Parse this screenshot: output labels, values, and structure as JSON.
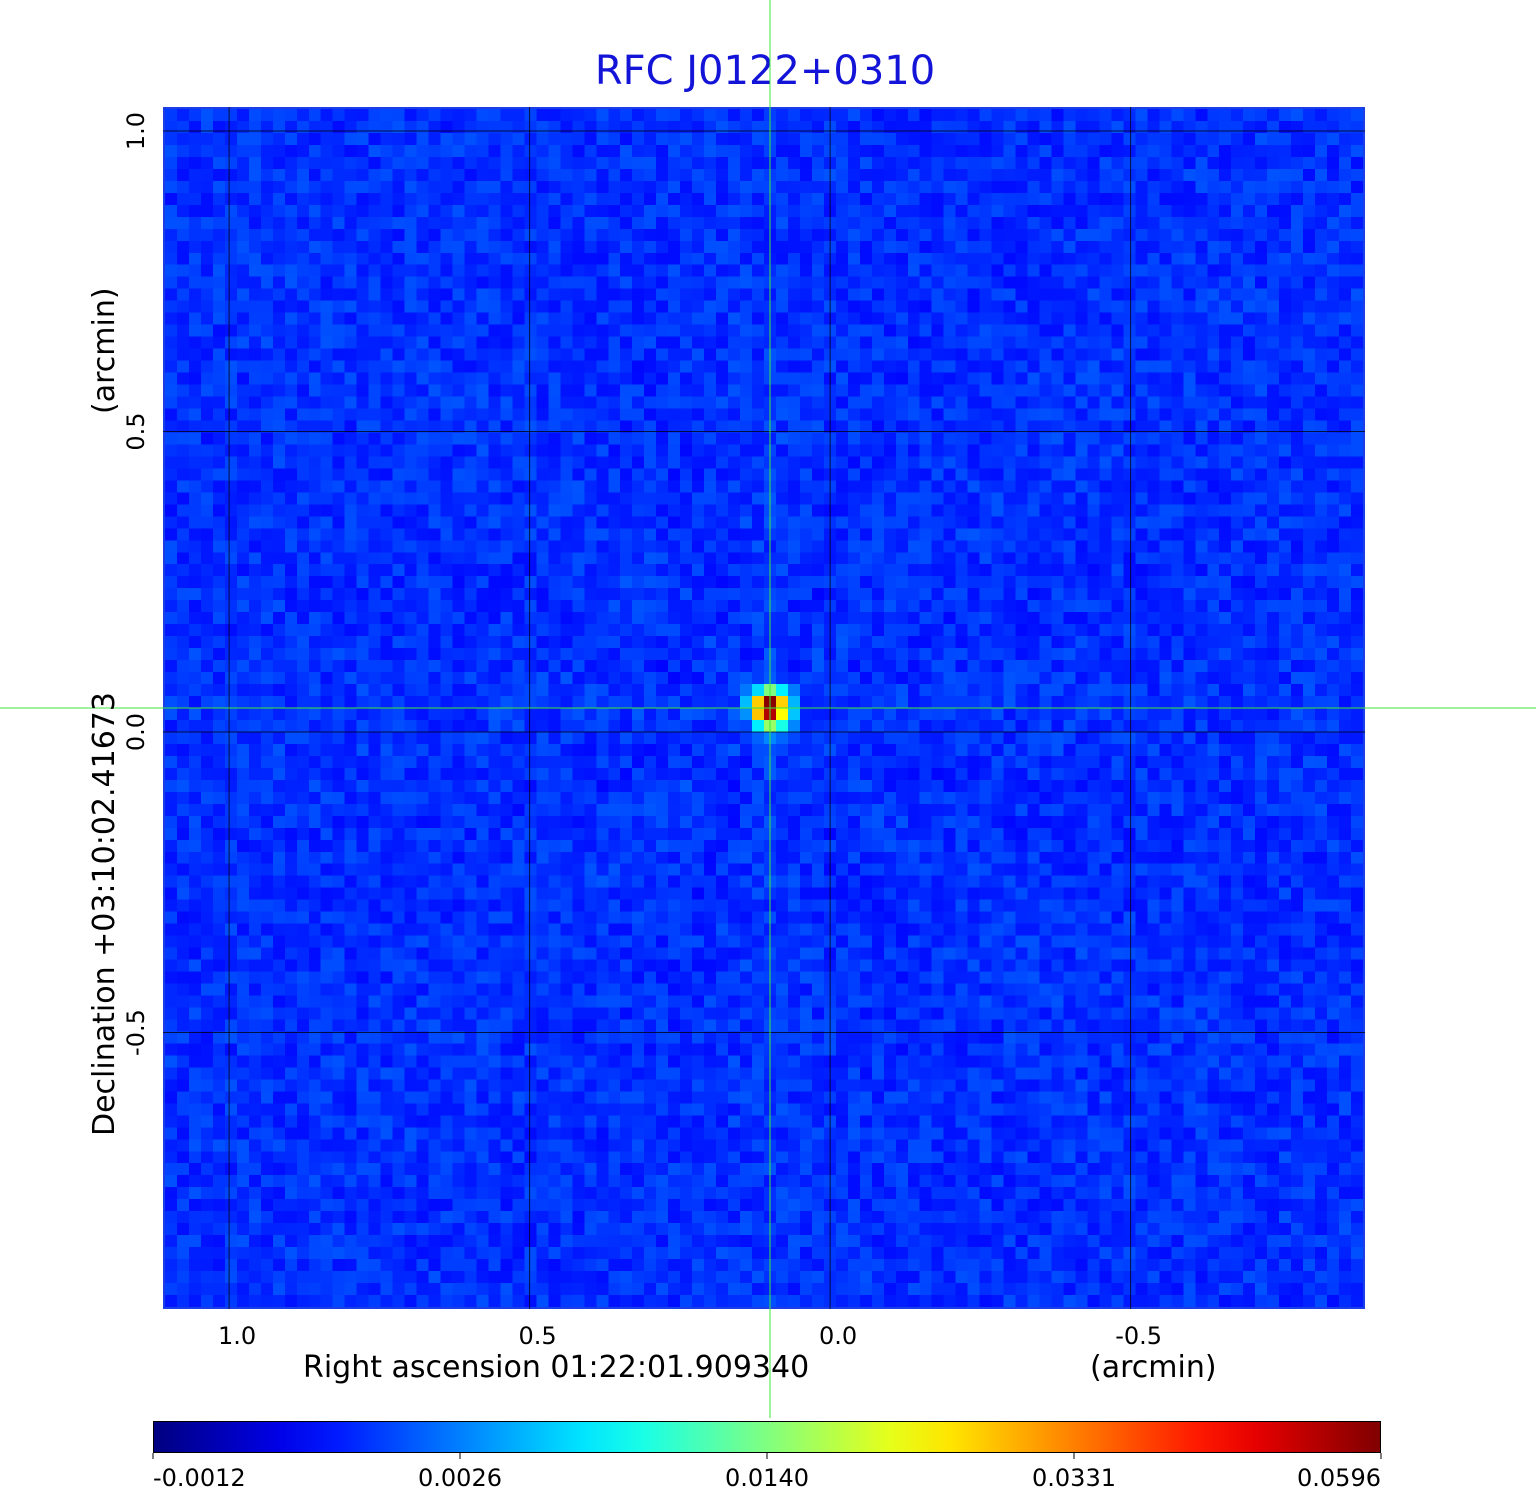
{
  "chart_data": {
    "type": "heatmap",
    "title": "RFC J0122+0310",
    "xlabel": "Right ascension  01:22:01.909340",
    "xlabel_unit": "(arcmin)",
    "ylabel": "Declination  +03:10:02.41673",
    "ylabel_unit": "(arcmin)",
    "xlim": [
      1.11,
      -0.89
    ],
    "ylim": [
      -0.96,
      1.04
    ],
    "x_ticks": [
      1.0,
      0.5,
      0.0,
      -0.5
    ],
    "x_tick_labels": [
      "1.0",
      "0.5",
      "0.0",
      "-0.5"
    ],
    "y_ticks": [
      1.0,
      0.5,
      0.0,
      -0.5
    ],
    "y_tick_labels": [
      "1.0",
      "0.5",
      "0.0",
      "-0.5"
    ],
    "grid": true,
    "crosshair": {
      "x": 0.1,
      "y": 0.04,
      "color": "#3ee83e"
    },
    "source_peak": {
      "x": 0.1,
      "y": 0.04,
      "value": 0.0596
    },
    "colormap": "jet",
    "colorbar_ticks": [
      -0.0012,
      0.0026,
      0.014,
      0.0331,
      0.0596
    ],
    "colorbar_labels": [
      "-0.0012",
      "0.0026",
      "0.0140",
      "0.0331",
      "0.0596"
    ]
  }
}
